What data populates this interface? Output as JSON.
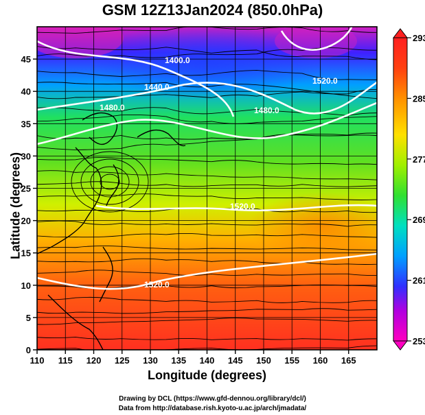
{
  "title": "GSM 12Z13Jan2024 (850.0hPa)",
  "x_axis": {
    "label": "Longitude (degrees)",
    "ticks": [
      110,
      115,
      120,
      125,
      130,
      135,
      140,
      145,
      150,
      155,
      160,
      165
    ],
    "range": [
      110,
      170
    ]
  },
  "y_axis": {
    "label": "Latitude  (degrees)",
    "ticks": [
      0,
      5,
      10,
      15,
      20,
      25,
      30,
      35,
      40,
      45
    ],
    "range": [
      0,
      50
    ]
  },
  "colorbar": {
    "labels": [
      "293",
      "285",
      "277",
      "269",
      "261",
      "253"
    ],
    "min": 253,
    "max": 293,
    "colors": [
      "#ff00c0",
      "#b000e0",
      "#3030ff",
      "#00a0ff",
      "#00e0c0",
      "#30e030",
      "#a0f000",
      "#ffe000",
      "#ff9000",
      "#ff4010",
      "#ff2020"
    ]
  },
  "contour_labels": [
    "1400.0",
    "1440.0",
    "1480.0",
    "1520.0",
    "1480.0",
    "1520.0",
    "1520.0"
  ],
  "credits": {
    "line1": "Drawing by DCL (https://www.gfd-dennou.org/library/dcl/)",
    "line2": "Data from http://database.rish.kyoto-u.ac.jp/arch/jmadata/"
  }
}
